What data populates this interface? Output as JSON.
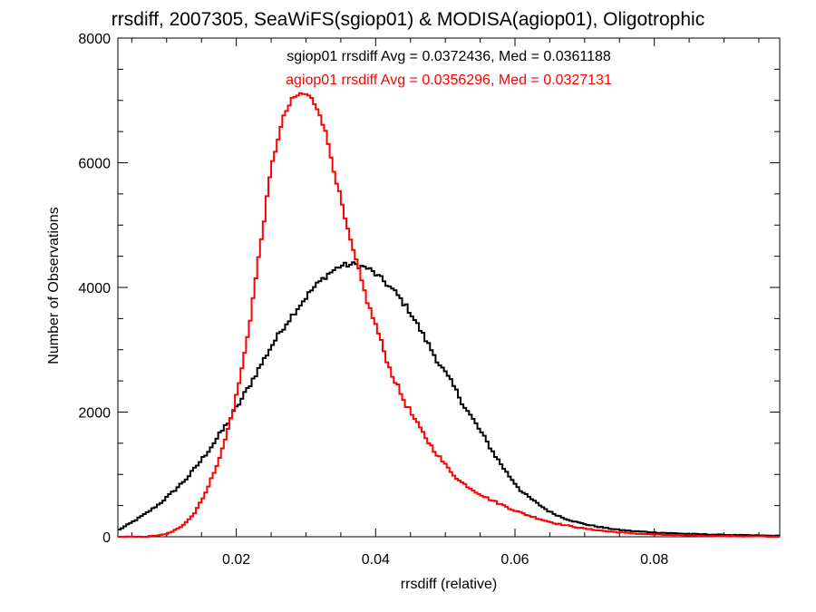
{
  "chart_data": {
    "type": "line",
    "title": "rrsdiff, 2007305, SeaWiFS(sgiop01) & MODISA(agiop01), Oligotrophic",
    "xlabel": "rrsdiff (relative)",
    "ylabel": "Number of Observations",
    "xlim": [
      0.003,
      0.098
    ],
    "ylim": [
      0,
      8000
    ],
    "x_ticks": [
      0.02,
      0.04,
      0.06,
      0.08
    ],
    "x_tick_labels": [
      "0.02",
      "0.04",
      "0.06",
      "0.08"
    ],
    "y_ticks": [
      0,
      2000,
      4000,
      6000,
      8000
    ],
    "y_tick_labels": [
      "0",
      "2000",
      "4000",
      "6000",
      "8000"
    ],
    "grid": false,
    "legend": "none",
    "annotations": [
      {
        "text": "sgiop01 rrsdiff Avg = 0.0372436, Med = 0.0361188",
        "color": "#000000"
      },
      {
        "text": "agiop01 rrsdiff Avg = 0.0356296, Med = 0.0327131",
        "color": "#ff0000"
      }
    ],
    "series": [
      {
        "color": "#000000",
        "style": "step",
        "x": [
          0.003,
          0.005,
          0.007,
          0.009,
          0.011,
          0.013,
          0.015,
          0.017,
          0.019,
          0.021,
          0.023,
          0.025,
          0.027,
          0.029,
          0.031,
          0.033,
          0.035,
          0.037,
          0.039,
          0.041,
          0.043,
          0.045,
          0.047,
          0.049,
          0.051,
          0.053,
          0.055,
          0.057,
          0.059,
          0.061,
          0.063,
          0.065,
          0.067,
          0.069,
          0.071,
          0.073,
          0.075,
          0.077,
          0.08,
          0.085,
          0.09,
          0.095,
          0.098
        ],
        "y": [
          100,
          230,
          370,
          530,
          730,
          950,
          1230,
          1540,
          1870,
          2250,
          2650,
          3050,
          3400,
          3700,
          3980,
          4200,
          4350,
          4370,
          4300,
          4120,
          3900,
          3600,
          3200,
          2800,
          2450,
          2050,
          1700,
          1330,
          1000,
          720,
          550,
          400,
          300,
          230,
          180,
          140,
          110,
          90,
          70,
          45,
          30,
          20,
          15
        ]
      },
      {
        "color": "#ff0000",
        "style": "step",
        "x": [
          0.003,
          0.007,
          0.01,
          0.012,
          0.014,
          0.016,
          0.018,
          0.019,
          0.02,
          0.021,
          0.022,
          0.023,
          0.024,
          0.025,
          0.026,
          0.027,
          0.028,
          0.029,
          0.03,
          0.031,
          0.032,
          0.033,
          0.034,
          0.035,
          0.036,
          0.037,
          0.038,
          0.039,
          0.04,
          0.041,
          0.042,
          0.043,
          0.044,
          0.045,
          0.046,
          0.048,
          0.05,
          0.052,
          0.054,
          0.056,
          0.058,
          0.06,
          0.062,
          0.064,
          0.066,
          0.068,
          0.07,
          0.073,
          0.076,
          0.08,
          0.085,
          0.09,
          0.095,
          0.098
        ],
        "y": [
          0,
          0,
          40,
          150,
          380,
          800,
          1400,
          1800,
          2250,
          2800,
          3500,
          4300,
          5100,
          5900,
          6400,
          6800,
          7000,
          7100,
          7100,
          7000,
          6800,
          6400,
          5900,
          5400,
          4900,
          4500,
          4100,
          3700,
          3400,
          3050,
          2700,
          2450,
          2200,
          2000,
          1800,
          1450,
          1150,
          900,
          750,
          620,
          520,
          420,
          340,
          270,
          210,
          170,
          130,
          90,
          60,
          35,
          20,
          10,
          5,
          0
        ]
      }
    ]
  }
}
